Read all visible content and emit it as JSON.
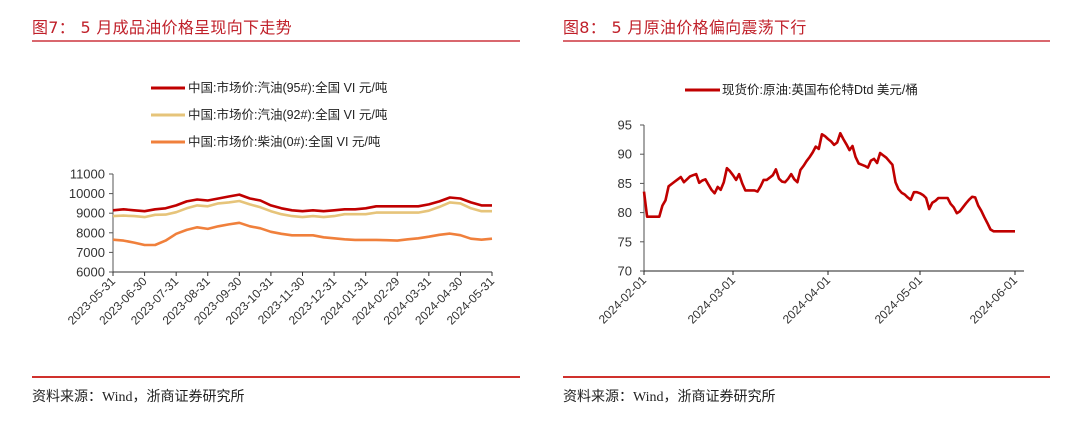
{
  "figure7": {
    "title": "图7： 5 月成品油价格呈现向下走势",
    "source": "资料来源：Wind，浙商证券研究所"
  },
  "figure8": {
    "title": "图8： 5 月原油价格偏向震荡下行",
    "source": "资料来源：Wind，浙商证券研究所"
  },
  "colors": {
    "title_red": "#c0202a",
    "rule_red": "#d0312d",
    "gasoline95": "#c00000",
    "gasoline92": "#e6c47a",
    "diesel0": "#f0803c",
    "brent": "#c00000"
  },
  "chart_data": [
    {
      "type": "line",
      "title": "5 月成品油价格呈现向下走势",
      "xlabel": "",
      "ylabel": "",
      "ylim": [
        6000,
        11000
      ],
      "yticks": [
        6000,
        7000,
        8000,
        9000,
        10000,
        11000
      ],
      "legend_position": "top",
      "grid": false,
      "categories": [
        "2023-05-31",
        "2023-06-30",
        "2023-07-31",
        "2023-08-31",
        "2023-09-30",
        "2023-10-31",
        "2023-11-30",
        "2023-12-31",
        "2024-01-31",
        "2024-02-29",
        "2024-03-31",
        "2024-04-30",
        "2024-05-31"
      ],
      "x_points": 37,
      "series": [
        {
          "name": "中国:市场价:汽油(95#):全国 VI 元/吨",
          "color": "#c00000",
          "values": [
            9150,
            9200,
            9150,
            9100,
            9200,
            9250,
            9400,
            9600,
            9700,
            9650,
            9750,
            9850,
            9950,
            9750,
            9650,
            9400,
            9250,
            9150,
            9100,
            9150,
            9100,
            9150,
            9200,
            9200,
            9250,
            9350,
            9350,
            9350,
            9350,
            9350,
            9450,
            9600,
            9800,
            9750,
            9550,
            9400,
            9400
          ]
        },
        {
          "name": "中国:市场价:汽油(92#):全国 VI 元/吨",
          "color": "#e6c47a",
          "values": [
            8850,
            8880,
            8850,
            8800,
            8920,
            8930,
            9050,
            9250,
            9400,
            9350,
            9500,
            9550,
            9620,
            9450,
            9300,
            9100,
            8950,
            8850,
            8800,
            8850,
            8800,
            8850,
            8950,
            8950,
            8950,
            9030,
            9030,
            9030,
            9030,
            9030,
            9130,
            9320,
            9550,
            9500,
            9250,
            9100,
            9100
          ]
        },
        {
          "name": "中国:市场价:柴油(0#):全国 VI 元/吨",
          "color": "#f0803c",
          "values": [
            7650,
            7600,
            7500,
            7380,
            7380,
            7600,
            7950,
            8150,
            8280,
            8200,
            8330,
            8430,
            8510,
            8330,
            8230,
            8050,
            7950,
            7870,
            7870,
            7870,
            7770,
            7720,
            7670,
            7640,
            7640,
            7640,
            7620,
            7600,
            7670,
            7720,
            7800,
            7900,
            7960,
            7880,
            7700,
            7650,
            7700
          ]
        }
      ]
    },
    {
      "type": "line",
      "title": "5 月原油价格偏向震荡下行",
      "xlabel": "",
      "ylabel": "",
      "ylim": [
        70,
        95
      ],
      "yticks": [
        70,
        75,
        80,
        85,
        90,
        95
      ],
      "legend_position": "top",
      "grid": false,
      "xticks": [
        "2024-02-01",
        "2024-03-01",
        "2024-04-01",
        "2024-05-01",
        "2024-06-01"
      ],
      "series": [
        {
          "name": "现货价:原油:英国布伦特Dtd 美元/桶",
          "color": "#c00000",
          "x_days": [
            0,
            1,
            2,
            3,
            4,
            5,
            6,
            7,
            8,
            9,
            10,
            11,
            12,
            13,
            14,
            15,
            16,
            17,
            18,
            19,
            20,
            21,
            22,
            23,
            24,
            25,
            26,
            27,
            28,
            29,
            30,
            31,
            32,
            33,
            34,
            35,
            36,
            37,
            38,
            39,
            40,
            41,
            42,
            43,
            44,
            45,
            46,
            47,
            48,
            49,
            50,
            51,
            52,
            53,
            54,
            55,
            56,
            57,
            58,
            59,
            60,
            61,
            62,
            63,
            64,
            65,
            66,
            67,
            68,
            69,
            70,
            71,
            72,
            73,
            74,
            75,
            76,
            77,
            78,
            79,
            80,
            81,
            82,
            83,
            84,
            85,
            86,
            87,
            88,
            89,
            90,
            91,
            92,
            93,
            94,
            95,
            96,
            97,
            98,
            99,
            100,
            101,
            102,
            103,
            104,
            105,
            106,
            107,
            108,
            109,
            110,
            111,
            112,
            113,
            114,
            115,
            116,
            117,
            118,
            119,
            120,
            121,
            122
          ],
          "values": [
            83.6,
            79.3,
            79.3,
            79.3,
            79.3,
            79.3,
            81.2,
            82.1,
            84.5,
            84.9,
            85.3,
            85.7,
            86.1,
            85.2,
            85.7,
            86.2,
            86.4,
            86.6,
            85.1,
            85.5,
            85.7,
            84.8,
            83.9,
            83.3,
            84.4,
            83.9,
            85.2,
            87.6,
            87.1,
            86.4,
            85.6,
            86.6,
            85.0,
            83.8,
            83.8,
            83.8,
            83.8,
            83.6,
            84.5,
            85.6,
            85.6,
            86.0,
            86.4,
            87.4,
            85.8,
            85.3,
            85.2,
            85.8,
            86.6,
            85.7,
            85.2,
            87.3,
            88.0,
            88.8,
            89.5,
            90.3,
            91.3,
            90.9,
            93.4,
            93.1,
            92.6,
            92.2,
            91.6,
            92.0,
            93.6,
            92.6,
            91.7,
            90.7,
            91.4,
            89.5,
            88.4,
            88.2,
            88.0,
            87.7,
            88.9,
            89.2,
            88.5,
            90.2,
            89.8,
            89.4,
            88.8,
            88.2,
            85.2,
            84.0,
            83.4,
            83.1,
            82.6,
            82.2,
            83.5,
            83.5,
            83.3,
            83.0,
            82.5,
            80.6,
            81.7,
            82.0,
            82.5,
            82.5,
            82.5,
            82.5,
            81.5,
            80.9,
            79.9,
            80.2,
            80.9,
            81.6,
            82.2,
            82.7,
            82.6,
            81.2,
            80.3,
            79.2,
            78.2,
            77.1,
            76.8,
            76.8,
            76.8,
            76.8,
            76.8,
            76.8,
            76.8,
            76.8,
            76.8
          ]
        }
      ]
    }
  ]
}
